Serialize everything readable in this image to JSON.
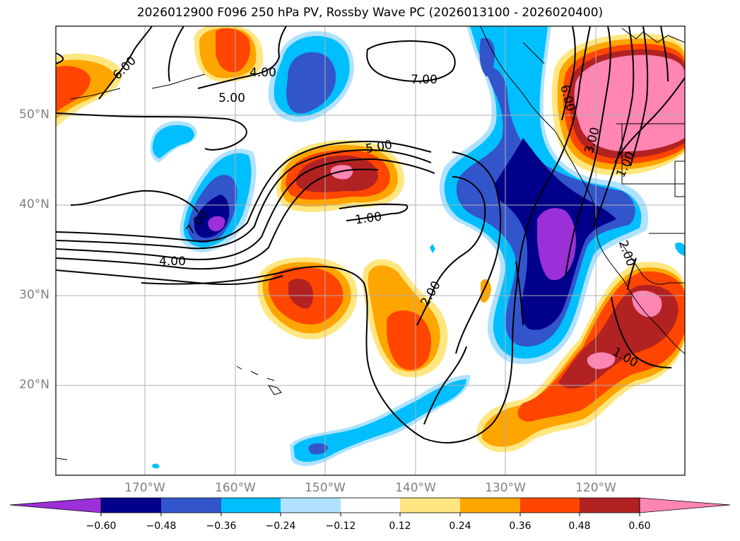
{
  "title": "2026012900 F096 250 hPa PV, Rossby Wave PC (2026013100 - 2026020400)",
  "lat_labels": [
    "50°N",
    "40°N",
    "30°N",
    "20°N"
  ],
  "lon_labels": [
    "170°W",
    "160°W",
    "150°W",
    "140°W",
    "130°W",
    "120°W"
  ],
  "contour_labels": [
    "6.00",
    "4.00",
    "5.00",
    "7.00",
    "5.00",
    "1.00",
    "7.00",
    "4.00",
    "2.00",
    "6.00",
    "3.00",
    "1.00",
    "2.00",
    "1.00"
  ],
  "colorbar": {
    "ticks": [
      "−0.60",
      "−0.48",
      "−0.36",
      "−0.24",
      "−0.12",
      "0.12",
      "0.24",
      "0.36",
      "0.48",
      "0.60"
    ],
    "colors": [
      "#9b30d9",
      "#00008b",
      "#3355cc",
      "#00bfff",
      "#b0e2ff",
      "#ffffff",
      "#ffe680",
      "#ffa500",
      "#ff4500",
      "#b22222",
      "#ff85b3"
    ]
  },
  "colors": {
    "neg_060": "#9b30d9",
    "neg_048": "#00008b",
    "neg_036": "#3355cc",
    "neg_024": "#00bfff",
    "neg_012": "#b0e2ff",
    "pos_012": "#ffe680",
    "pos_024": "#ffa500",
    "pos_036": "#ff4500",
    "pos_048": "#b22222",
    "pos_060": "#ff85b3"
  }
}
